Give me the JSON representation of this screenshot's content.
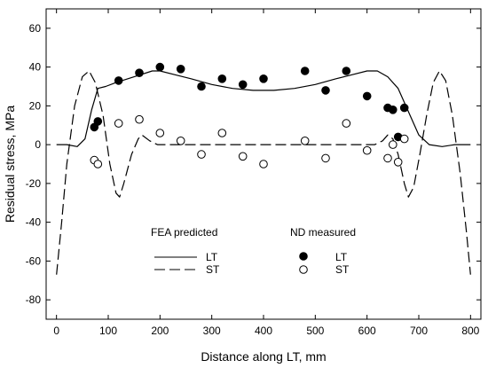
{
  "chart_data": {
    "type": "line",
    "title": "",
    "xlabel": "Distance along LT, mm",
    "ylabel": "Residual stress, MPa",
    "xlim": [
      -20,
      820
    ],
    "ylim": [
      -90,
      70
    ],
    "xticks": [
      0,
      100,
      200,
      300,
      400,
      500,
      600,
      700,
      800
    ],
    "yticks": [
      -80,
      -60,
      -40,
      -20,
      0,
      20,
      40,
      60
    ],
    "grid": false,
    "legend": {
      "placement": "lower-center",
      "group_titles": [
        "FEA predicted",
        "ND measured"
      ],
      "entries": [
        {
          "label": "LT",
          "series": "FEA LT"
        },
        {
          "label": "ST",
          "series": "FEA ST"
        },
        {
          "label": "LT",
          "series": "ND LT"
        },
        {
          "label": "ST",
          "series": "ND ST"
        }
      ]
    },
    "series": [
      {
        "name": "FEA LT",
        "style": "solid-line",
        "color": "#000000",
        "points": [
          [
            0,
            0
          ],
          [
            20,
            0
          ],
          [
            40,
            -1
          ],
          [
            55,
            3
          ],
          [
            68,
            18
          ],
          [
            80,
            29
          ],
          [
            95,
            30
          ],
          [
            115,
            32
          ],
          [
            150,
            35
          ],
          [
            185,
            38
          ],
          [
            200,
            38
          ],
          [
            230,
            36
          ],
          [
            260,
            34
          ],
          [
            300,
            31
          ],
          [
            340,
            29
          ],
          [
            380,
            28
          ],
          [
            420,
            28
          ],
          [
            460,
            29
          ],
          [
            500,
            31
          ],
          [
            540,
            34
          ],
          [
            570,
            36
          ],
          [
            600,
            38
          ],
          [
            620,
            38
          ],
          [
            640,
            35
          ],
          [
            660,
            29
          ],
          [
            680,
            17
          ],
          [
            700,
            5
          ],
          [
            720,
            0
          ],
          [
            745,
            -1
          ],
          [
            770,
            0
          ],
          [
            800,
            0
          ]
        ]
      },
      {
        "name": "FEA ST",
        "style": "dashed-line",
        "color": "#000000",
        "points": [
          [
            0,
            -67
          ],
          [
            10,
            -40
          ],
          [
            20,
            -10
          ],
          [
            35,
            20
          ],
          [
            50,
            35
          ],
          [
            63,
            38
          ],
          [
            75,
            32
          ],
          [
            90,
            15
          ],
          [
            103,
            -10
          ],
          [
            115,
            -25
          ],
          [
            122,
            -27
          ],
          [
            130,
            -20
          ],
          [
            145,
            -5
          ],
          [
            158,
            3
          ],
          [
            165,
            5
          ],
          [
            180,
            2
          ],
          [
            195,
            0
          ],
          [
            300,
            0
          ],
          [
            400,
            0
          ],
          [
            500,
            0
          ],
          [
            600,
            0
          ],
          [
            615,
            0
          ],
          [
            630,
            2
          ],
          [
            640,
            5
          ],
          [
            650,
            3
          ],
          [
            660,
            -5
          ],
          [
            672,
            -20
          ],
          [
            680,
            -27
          ],
          [
            690,
            -22
          ],
          [
            702,
            -5
          ],
          [
            715,
            15
          ],
          [
            728,
            32
          ],
          [
            740,
            38
          ],
          [
            752,
            33
          ],
          [
            765,
            15
          ],
          [
            780,
            -15
          ],
          [
            792,
            -45
          ],
          [
            800,
            -67
          ]
        ]
      },
      {
        "name": "ND LT",
        "style": "filled-circle",
        "color": "#000000",
        "points": [
          [
            73,
            9
          ],
          [
            80,
            12
          ],
          [
            120,
            33
          ],
          [
            160,
            37
          ],
          [
            200,
            40
          ],
          [
            240,
            39
          ],
          [
            280,
            30
          ],
          [
            320,
            34
          ],
          [
            360,
            31
          ],
          [
            400,
            34
          ],
          [
            480,
            38
          ],
          [
            520,
            28
          ],
          [
            560,
            38
          ],
          [
            600,
            25
          ],
          [
            640,
            19
          ],
          [
            650,
            18
          ],
          [
            660,
            4
          ],
          [
            672,
            19
          ]
        ]
      },
      {
        "name": "ND ST",
        "style": "open-circle",
        "color": "#000000",
        "points": [
          [
            73,
            -8
          ],
          [
            80,
            -10
          ],
          [
            120,
            11
          ],
          [
            160,
            13
          ],
          [
            200,
            6
          ],
          [
            240,
            2
          ],
          [
            280,
            -5
          ],
          [
            320,
            6
          ],
          [
            360,
            -6
          ],
          [
            400,
            -10
          ],
          [
            480,
            2
          ],
          [
            520,
            -7
          ],
          [
            560,
            11
          ],
          [
            600,
            -3
          ],
          [
            640,
            -7
          ],
          [
            650,
            0
          ],
          [
            660,
            -9
          ],
          [
            672,
            3
          ]
        ]
      }
    ]
  }
}
